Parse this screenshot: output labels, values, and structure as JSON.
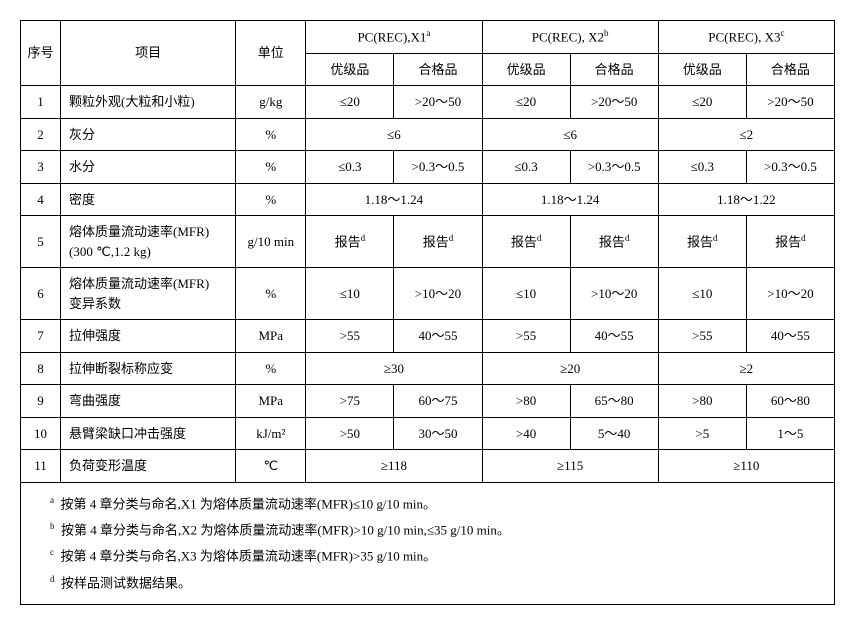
{
  "header": {
    "seq": "序号",
    "item": "项目",
    "unit": "单位",
    "group1": "PC(REC),X1",
    "group2": "PC(REC), X2",
    "group3": "PC(REC), X3",
    "sup1": "a",
    "sup2": "b",
    "sup3": "c",
    "superior": "优级品",
    "qualified": "合格品"
  },
  "rows": {
    "r1": {
      "seq": "1",
      "item": "颗粒外观(大粒和小粒)",
      "unit": "g/kg",
      "x1a": "≤20",
      "x1b": ">20～50",
      "x2a": "≤20",
      "x2b": ">20～50",
      "x3a": "≤20",
      "x3b": ">20～50"
    },
    "r2": {
      "seq": "2",
      "item": "灰分",
      "unit": "%",
      "x1": "≤6",
      "x2": "≤6",
      "x3": "≤2"
    },
    "r3": {
      "seq": "3",
      "item": "水分",
      "unit": "%",
      "x1a": "≤0.3",
      "x1b": ">0.3～0.5",
      "x2a": "≤0.3",
      "x2b": ">0.3～0.5",
      "x3a": "≤0.3",
      "x3b": ">0.3～0.5"
    },
    "r4": {
      "seq": "4",
      "item": "密度",
      "unit": "%",
      "x1": "1.18～1.24",
      "x2": "1.18～1.24",
      "x3": "1.18～1.22"
    },
    "r5": {
      "seq": "5",
      "item": "熔体质量流动速率(MFR)\n(300 ℃,1.2 kg)",
      "unit": "g/10 min",
      "x1a": "报告",
      "x1b": "报告",
      "x2a": "报告",
      "x2b": "报告",
      "x3a": "报告",
      "x3b": "报告",
      "supd": "d"
    },
    "r6": {
      "seq": "6",
      "item": "熔体质量流动速率(MFR)\n变异系数",
      "unit": "%",
      "x1a": "≤10",
      "x1b": ">10～20",
      "x2a": "≤10",
      "x2b": ">10～20",
      "x3a": "≤10",
      "x3b": ">10～20"
    },
    "r7": {
      "seq": "7",
      "item": "拉伸强度",
      "unit": "MPa",
      "x1a": ">55",
      "x1b": "40～55",
      "x2a": ">55",
      "x2b": "40～55",
      "x3a": ">55",
      "x3b": "40～55"
    },
    "r8": {
      "seq": "8",
      "item": "拉伸断裂标称应变",
      "unit": "%",
      "x1": "≥30",
      "x2": "≥20",
      "x3": "≥2"
    },
    "r9": {
      "seq": "9",
      "item": "弯曲强度",
      "unit": "MPa",
      "x1a": ">75",
      "x1b": "60～75",
      "x2a": ">80",
      "x2b": "65～80",
      "x3a": ">80",
      "x3b": "60～80"
    },
    "r10": {
      "seq": "10",
      "item": "悬臂梁缺口冲击强度",
      "unit": "kJ/m²",
      "x1a": ">50",
      "x1b": "30～50",
      "x2a": ">40",
      "x2b": "5～40",
      "x3a": ">5",
      "x3b": "1～5"
    },
    "r11": {
      "seq": "11",
      "item": "负荷变形温度",
      "unit": "℃",
      "x1": "≥118",
      "x2": "≥115",
      "x3": "≥110"
    }
  },
  "footnotes": {
    "a_sup": "a",
    "a": "按第 4 章分类与命名,X1 为熔体质量流动速率(MFR)≤10 g/10 min。",
    "b_sup": "b",
    "b": "按第 4 章分类与命名,X2 为熔体质量流动速率(MFR)>10 g/10 min,≤35 g/10 min。",
    "c_sup": "c",
    "c": "按第 4 章分类与命名,X3 为熔体质量流动速率(MFR)>35 g/10 min。",
    "d_sup": "d",
    "d": "按样品测试数据结果。"
  }
}
